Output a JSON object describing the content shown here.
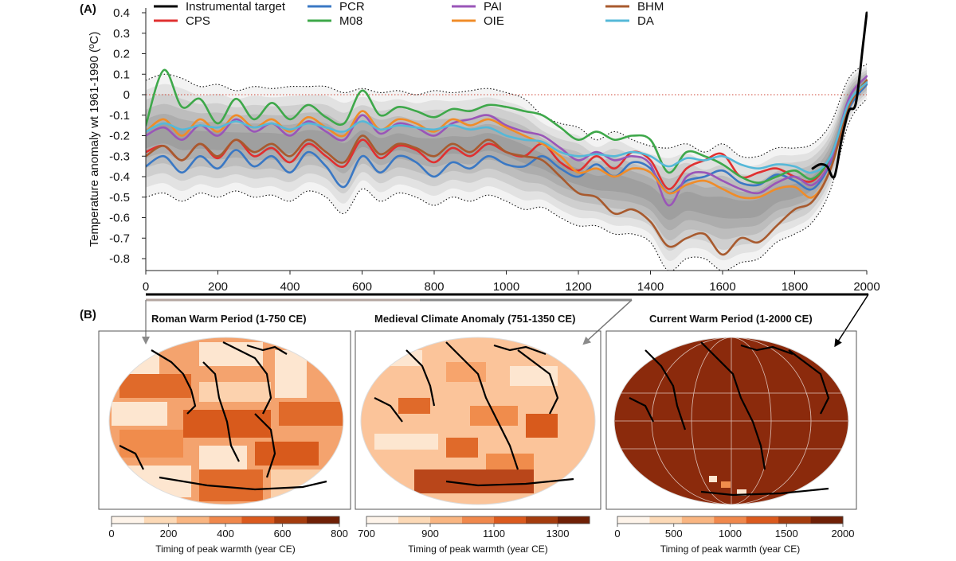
{
  "panel_a_label": "(A)",
  "panel_b_label": "(B)",
  "chart_data": [
    {
      "type": "line",
      "title": "",
      "xlabel": "",
      "ylabel": "Temperature anomaly wt 1961-1990 (ºC)",
      "xlim": [
        0,
        2000
      ],
      "ylim": [
        -0.85,
        0.42
      ],
      "xticks": [
        0,
        200,
        400,
        600,
        800,
        1000,
        1200,
        1400,
        1600,
        1800,
        2000
      ],
      "xtick_labels": [
        "0",
        "200",
        "400",
        "600",
        "800",
        "1000",
        "1200",
        "1400",
        "1600",
        "1800",
        "2000"
      ],
      "yticks": [
        0.4,
        0.3,
        0.2,
        0.1,
        0,
        -0.1,
        -0.2,
        -0.3,
        -0.4,
        -0.5,
        -0.6,
        -0.7,
        -0.8
      ],
      "ytick_labels": [
        "0.4",
        "0.3",
        "0.2",
        "0.1",
        "0",
        "-0.1",
        "-0.2",
        "-0.3",
        "-0.4",
        "-0.5",
        "-0.6",
        "-0.7",
        "-0.8"
      ],
      "reference_line": {
        "y": 0,
        "style": "dotted",
        "color": "#d04a3a"
      },
      "x": [
        0,
        50,
        100,
        150,
        200,
        250,
        300,
        350,
        400,
        450,
        500,
        550,
        600,
        650,
        700,
        750,
        800,
        850,
        900,
        950,
        1000,
        1050,
        1100,
        1150,
        1200,
        1250,
        1300,
        1350,
        1400,
        1450,
        1500,
        1550,
        1600,
        1650,
        1700,
        1750,
        1800,
        1850,
        1900,
        1950,
        2000
      ],
      "series": [
        {
          "name": "CPS",
          "color": "#e03030",
          "values": [
            -0.28,
            -0.25,
            -0.32,
            -0.24,
            -0.31,
            -0.22,
            -0.3,
            -0.26,
            -0.33,
            -0.24,
            -0.3,
            -0.35,
            -0.22,
            -0.31,
            -0.25,
            -0.27,
            -0.33,
            -0.26,
            -0.3,
            -0.24,
            -0.28,
            -0.3,
            -0.24,
            -0.33,
            -0.37,
            -0.3,
            -0.36,
            -0.28,
            -0.32,
            -0.46,
            -0.36,
            -0.32,
            -0.29,
            -0.4,
            -0.38,
            -0.36,
            -0.4,
            -0.42,
            -0.3,
            -0.05,
            0.07
          ]
        },
        {
          "name": "PCR",
          "color": "#3a78c4",
          "values": [
            -0.35,
            -0.3,
            -0.38,
            -0.3,
            -0.36,
            -0.27,
            -0.35,
            -0.3,
            -0.38,
            -0.28,
            -0.35,
            -0.45,
            -0.3,
            -0.38,
            -0.3,
            -0.33,
            -0.4,
            -0.33,
            -0.36,
            -0.3,
            -0.34,
            -0.35,
            -0.3,
            -0.36,
            -0.4,
            -0.34,
            -0.4,
            -0.33,
            -0.36,
            -0.48,
            -0.42,
            -0.4,
            -0.37,
            -0.43,
            -0.44,
            -0.39,
            -0.42,
            -0.46,
            -0.33,
            -0.07,
            0.05
          ]
        },
        {
          "name": "M08",
          "color": "#3ea84a",
          "values": [
            -0.15,
            0.12,
            -0.06,
            -0.02,
            -0.14,
            -0.02,
            -0.12,
            -0.04,
            -0.12,
            -0.05,
            -0.11,
            -0.14,
            0.02,
            -0.1,
            -0.06,
            -0.08,
            -0.11,
            -0.07,
            -0.08,
            -0.05,
            -0.06,
            -0.08,
            -0.1,
            -0.16,
            -0.22,
            -0.18,
            -0.22,
            -0.2,
            -0.22,
            -0.38,
            -0.28,
            -0.3,
            -0.34,
            -0.4,
            -0.43,
            -0.4,
            -0.37,
            -0.41,
            -0.3,
            -0.05,
            0.07
          ]
        },
        {
          "name": "PAI",
          "color": "#9a55b8",
          "values": [
            -0.2,
            -0.16,
            -0.22,
            -0.15,
            -0.2,
            -0.12,
            -0.18,
            -0.14,
            -0.2,
            -0.13,
            -0.18,
            -0.22,
            -0.1,
            -0.19,
            -0.14,
            -0.16,
            -0.2,
            -0.14,
            -0.12,
            -0.1,
            -0.15,
            -0.18,
            -0.2,
            -0.26,
            -0.32,
            -0.28,
            -0.32,
            -0.3,
            -0.34,
            -0.54,
            -0.4,
            -0.38,
            -0.42,
            -0.46,
            -0.48,
            -0.43,
            -0.4,
            -0.44,
            -0.32,
            -0.02,
            0.09
          ]
        },
        {
          "name": "OIE",
          "color": "#f08c28",
          "values": [
            -0.18,
            -0.12,
            -0.2,
            -0.12,
            -0.18,
            -0.1,
            -0.16,
            -0.12,
            -0.18,
            -0.11,
            -0.16,
            -0.2,
            -0.08,
            -0.17,
            -0.12,
            -0.14,
            -0.18,
            -0.12,
            -0.15,
            -0.12,
            -0.16,
            -0.2,
            -0.24,
            -0.3,
            -0.38,
            -0.36,
            -0.4,
            -0.36,
            -0.38,
            -0.48,
            -0.44,
            -0.42,
            -0.46,
            -0.5,
            -0.5,
            -0.46,
            -0.45,
            -0.5,
            -0.36,
            -0.06,
            0.06
          ]
        },
        {
          "name": "BHM",
          "color": "#a85a2e",
          "values": [
            -0.3,
            -0.25,
            -0.32,
            -0.24,
            -0.3,
            -0.22,
            -0.28,
            -0.24,
            -0.3,
            -0.22,
            -0.28,
            -0.33,
            -0.2,
            -0.29,
            -0.24,
            -0.26,
            -0.3,
            -0.24,
            -0.28,
            -0.22,
            -0.28,
            -0.3,
            -0.32,
            -0.4,
            -0.48,
            -0.5,
            -0.58,
            -0.56,
            -0.62,
            -0.74,
            -0.7,
            -0.68,
            -0.78,
            -0.7,
            -0.72,
            -0.64,
            -0.56,
            -0.52,
            -0.36,
            -0.06,
            0.07
          ]
        },
        {
          "name": "DA",
          "color": "#55b8d8",
          "values": [
            -0.18,
            -0.14,
            -0.17,
            -0.15,
            -0.16,
            -0.13,
            -0.16,
            -0.14,
            -0.17,
            -0.14,
            -0.16,
            -0.18,
            -0.13,
            -0.17,
            -0.15,
            -0.16,
            -0.17,
            -0.15,
            -0.17,
            -0.16,
            -0.2,
            -0.22,
            -0.23,
            -0.28,
            -0.3,
            -0.29,
            -0.3,
            -0.28,
            -0.3,
            -0.35,
            -0.31,
            -0.32,
            -0.3,
            -0.34,
            -0.36,
            -0.34,
            -0.35,
            -0.38,
            -0.3,
            -0.04,
            0.06
          ]
        },
        {
          "name": "Instrumental target",
          "color": "#000000",
          "is_target": true,
          "x": [
            1850,
            1870,
            1890,
            1910,
            1930,
            1950,
            1970,
            1990,
            2000
          ],
          "values": [
            -0.36,
            -0.34,
            -0.35,
            -0.4,
            -0.22,
            -0.08,
            -0.04,
            0.25,
            0.4
          ]
        }
      ],
      "uncertainty_band": {
        "color": "#888888",
        "upper": [
          0.07,
          0.1,
          0.08,
          0.04,
          0.05,
          0.02,
          0.04,
          0.03,
          0.04,
          0.04,
          0.04,
          0.01,
          0.03,
          0.01,
          0.02,
          0.0,
          0.02,
          0.01,
          0.02,
          0.03,
          0.01,
          -0.02,
          -0.1,
          -0.14,
          -0.16,
          -0.22,
          -0.18,
          -0.22,
          -0.25,
          -0.26,
          -0.24,
          -0.28,
          -0.24,
          -0.3,
          -0.3,
          -0.26,
          -0.26,
          -0.24,
          -0.14,
          0.08,
          0.15
        ],
        "lower": [
          -0.5,
          -0.48,
          -0.52,
          -0.48,
          -0.5,
          -0.47,
          -0.5,
          -0.49,
          -0.52,
          -0.47,
          -0.5,
          -0.58,
          -0.46,
          -0.52,
          -0.48,
          -0.5,
          -0.54,
          -0.5,
          -0.52,
          -0.49,
          -0.52,
          -0.56,
          -0.55,
          -0.6,
          -0.64,
          -0.64,
          -0.68,
          -0.68,
          -0.72,
          -0.86,
          -0.8,
          -0.8,
          -0.86,
          -0.82,
          -0.8,
          -0.72,
          -0.68,
          -0.62,
          -0.46,
          -0.14,
          -0.02
        ]
      },
      "legend": {
        "placement": "top",
        "columns": 4,
        "order": [
          "Instrumental target",
          "CPS",
          "PCR",
          "M08",
          "PAI",
          "OIE",
          "BHM",
          "DA"
        ]
      }
    },
    {
      "type": "heatmap",
      "title": "Roman Warm Period (1-750 CE)",
      "colorbar": {
        "ticks": [
          0,
          200,
          400,
          600,
          800
        ],
        "tick_labels": [
          "0",
          "200",
          "400",
          "600",
          "800"
        ],
        "label": "Timing of peak warmth (year CE)",
        "colors": [
          "#fef4ea",
          "#fcd9b6",
          "#f9b581",
          "#f0884c",
          "#db5a1e",
          "#a43c0e",
          "#6f2006"
        ]
      },
      "period_range": [
        1,
        750
      ]
    },
    {
      "type": "heatmap",
      "title": "Medieval Climate Anomaly (751-1350 CE)",
      "colorbar": {
        "ticks": [
          700,
          900,
          1100,
          1300
        ],
        "tick_labels": [
          "700",
          "900",
          "1100",
          "1300"
        ],
        "label": "Timing of peak warmth (year CE)",
        "colors": [
          "#fef4ea",
          "#fcd9b6",
          "#f9b581",
          "#f0884c",
          "#db5a1e",
          "#a43c0e",
          "#6f2006"
        ]
      },
      "period_range": [
        751,
        1350
      ]
    },
    {
      "type": "heatmap",
      "title": "Current Warm Period (1-2000 CE)",
      "colorbar": {
        "ticks": [
          0,
          500,
          1000,
          1500,
          2000
        ],
        "tick_labels": [
          "0",
          "500",
          "1000",
          "1500",
          "2000"
        ],
        "label": "Timing of peak warmth (year CE)",
        "colors": [
          "#fef4ea",
          "#fcd9b6",
          "#f9b581",
          "#f0884c",
          "#db5a1e",
          "#a43c0e",
          "#6f2006"
        ]
      },
      "period_range": [
        1,
        2000
      ]
    }
  ]
}
